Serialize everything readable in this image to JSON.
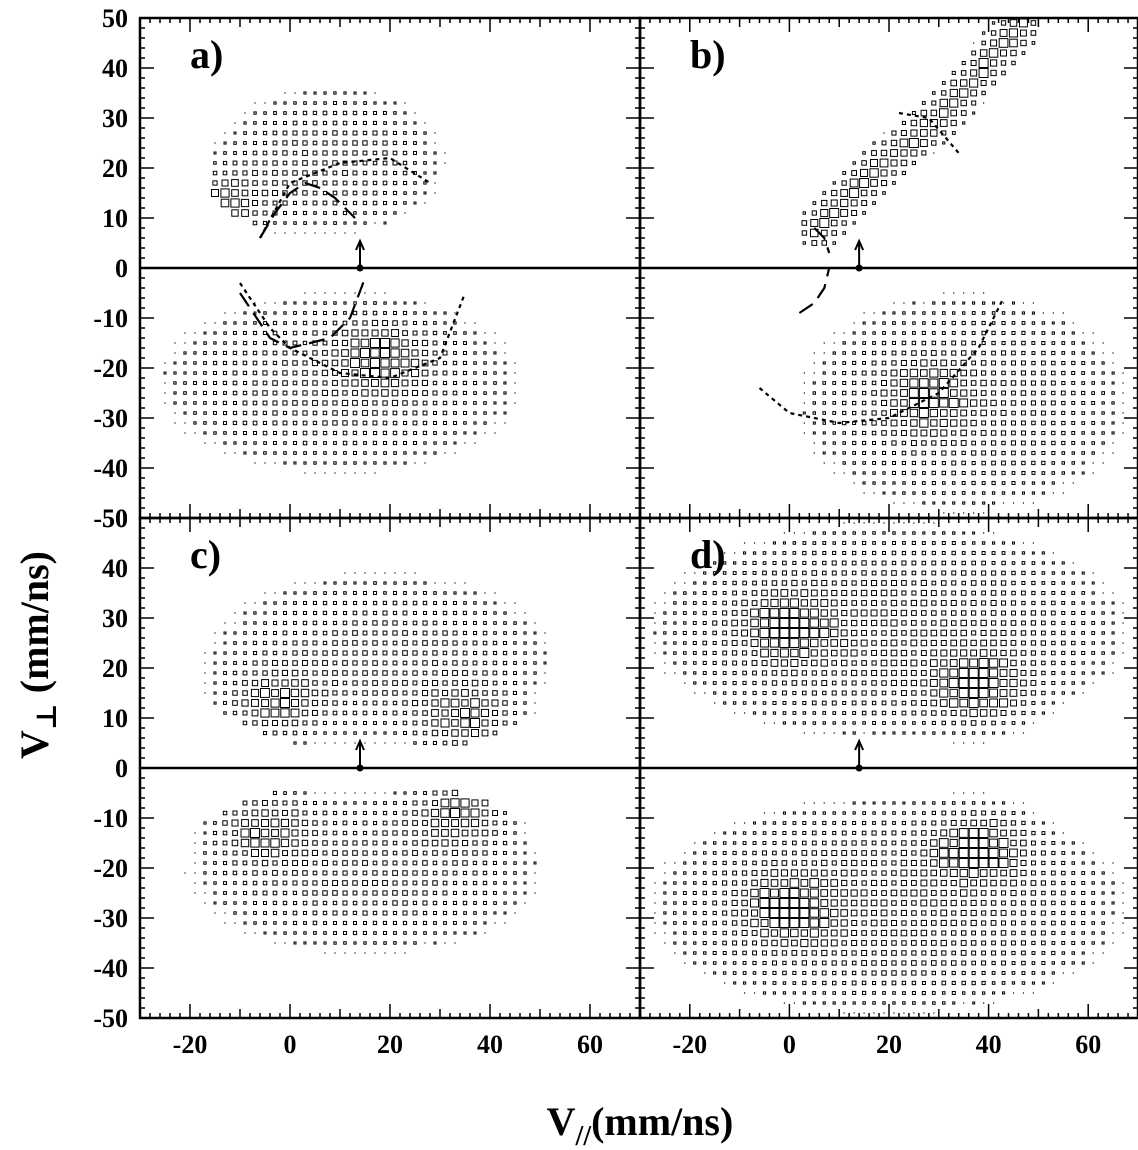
{
  "figure": {
    "xlabel_main": "V",
    "xlabel_sub": "//",
    "xlabel_unit": "(mm/ns)",
    "ylabel_main": "V",
    "ylabel_sub": "⊥",
    "ylabel_unit": " (mm/ns)"
  },
  "chart_data": [
    {
      "panel": "a)",
      "type": "scatter",
      "xlim": [
        -30,
        70
      ],
      "ylim": [
        -50,
        50
      ],
      "xticks": [
        -20,
        0,
        20,
        40,
        60
      ],
      "yticks": [
        50,
        40,
        30,
        20,
        10,
        0,
        -10,
        -20,
        -30,
        -40,
        -50
      ],
      "marker": "open-square-size-proportional-to-counts",
      "arrow_x": 14,
      "clusters": [
        {
          "x": [
            -16,
            32
          ],
          "y": [
            6,
            37
          ],
          "peak": [
            -13,
            13
          ],
          "weight": 1.0
        },
        {
          "x": [
            -28,
            48
          ],
          "y": [
            -42,
            -4
          ],
          "peak": [
            18,
            -18
          ],
          "weight": 1.0
        }
      ],
      "curves": [
        {
          "style": "dashed-long",
          "x": [
            -6,
            -3,
            0,
            3,
            6,
            9,
            11,
            13
          ],
          "y": [
            6,
            11,
            15,
            17,
            16,
            14,
            12,
            10
          ]
        },
        {
          "style": "dotted",
          "x": [
            -6,
            0,
            10,
            20,
            28
          ],
          "y": [
            6,
            17,
            21,
            22,
            17
          ]
        },
        {
          "style": "dashed-long",
          "x": [
            -10,
            -4,
            0,
            8,
            12,
            15
          ],
          "y": [
            -5,
            -14,
            -16,
            -14,
            -10,
            -2
          ]
        },
        {
          "style": "dotted",
          "x": [
            -10,
            -4,
            0,
            10,
            20,
            30,
            35
          ],
          "y": [
            -3,
            -12,
            -16,
            -21,
            -22,
            -18,
            -5
          ]
        }
      ]
    },
    {
      "panel": "b)",
      "type": "scatter",
      "xlim": [
        -30,
        70
      ],
      "ylim": [
        -50,
        50
      ],
      "xticks": [
        -20,
        0,
        20,
        40,
        60
      ],
      "yticks": [
        50,
        40,
        30,
        20,
        10,
        0,
        -10,
        -20,
        -30,
        -40,
        -50
      ],
      "marker": "open-square-size-proportional-to-counts",
      "arrow_x": 14,
      "clusters": [
        {
          "band": [
            [
              6,
              8
            ],
            [
              18,
              20
            ],
            [
              30,
              30
            ],
            [
              46,
              48
            ]
          ],
          "width": 5,
          "weight": 1.0
        },
        {
          "x": [
            0,
            70
          ],
          "y": [
            -50,
            -4
          ],
          "peak": [
            28,
            -26
          ],
          "weight": 1.0
        }
      ],
      "curves": [
        {
          "style": "dashed-long",
          "x": [
            5,
            7,
            8
          ],
          "y": [
            8,
            6,
            3
          ]
        },
        {
          "style": "dotted",
          "x": [
            22,
            28,
            34
          ],
          "y": [
            31,
            30,
            23
          ]
        },
        {
          "style": "dashed-long",
          "x": [
            2,
            5,
            7,
            8
          ],
          "y": [
            -9,
            -7,
            -4,
            0
          ]
        },
        {
          "style": "dotted",
          "x": [
            -6,
            0,
            10,
            20,
            30,
            38,
            43
          ],
          "y": [
            -24,
            -29,
            -31,
            -30,
            -25,
            -16,
            -6
          ]
        }
      ]
    },
    {
      "panel": "c)",
      "type": "scatter",
      "xlim": [
        -30,
        70
      ],
      "ylim": [
        -50,
        50
      ],
      "xticks": [
        -20,
        0,
        20,
        40,
        60
      ],
      "yticks": [
        50,
        40,
        30,
        20,
        10,
        0,
        -10,
        -20,
        -30,
        -40,
        -50
      ],
      "marker": "open-square-size-proportional-to-counts",
      "arrow_x": 14,
      "clusters": [
        {
          "x": [
            -18,
            54
          ],
          "y": [
            4,
            40
          ],
          "peak": [
            -3,
            13
          ],
          "peak2": [
            35,
            10
          ],
          "weight": 1.0
        },
        {
          "x": [
            -22,
            52
          ],
          "y": [
            -38,
            -4
          ],
          "peak": [
            -5,
            -12
          ],
          "peak2": [
            34,
            -9
          ],
          "weight": 1.0
        }
      ],
      "curves": []
    },
    {
      "panel": "d)",
      "type": "scatter",
      "xlim": [
        -30,
        70
      ],
      "ylim": [
        -50,
        50
      ],
      "xticks": [
        -20,
        0,
        20,
        40,
        60
      ],
      "yticks": [
        50,
        40,
        30,
        20,
        10,
        0,
        -10,
        -20,
        -30,
        -40,
        -50
      ],
      "marker": "open-square-size-proportional-to-counts",
      "arrow_x": 14,
      "clusters": [
        {
          "x": [
            -30,
            70
          ],
          "y": [
            5,
            50
          ],
          "peak": [
            0,
            28
          ],
          "peak2": [
            38,
            16
          ],
          "weight": 1.3
        },
        {
          "x": [
            -30,
            70
          ],
          "y": [
            -50,
            -5
          ],
          "peak": [
            0,
            -28
          ],
          "peak2": [
            38,
            -16
          ],
          "weight": 1.3
        }
      ],
      "curves": []
    }
  ]
}
